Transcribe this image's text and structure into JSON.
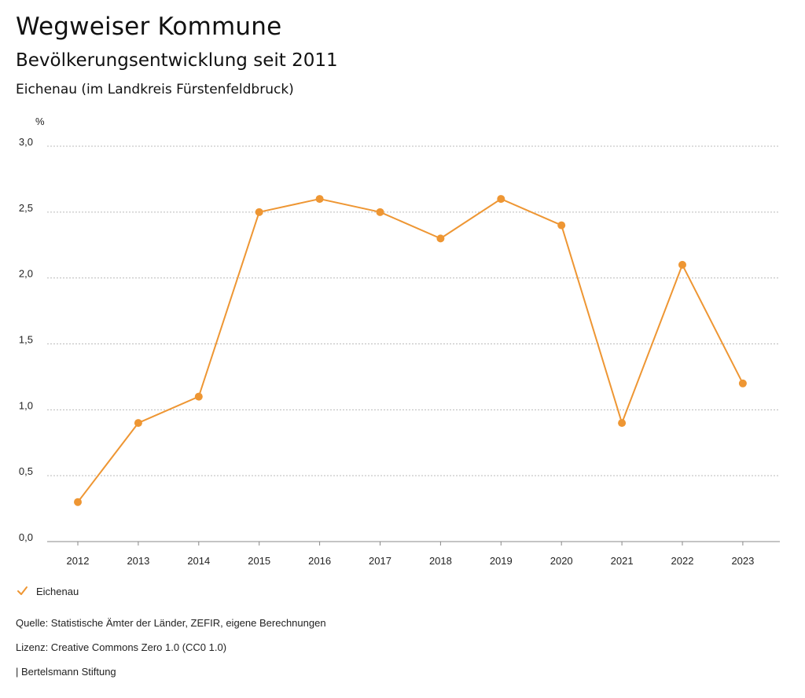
{
  "header": {
    "title": "Wegweiser Kommune",
    "subtitle": "Bevölkerungsentwicklung seit 2011",
    "region": "Eichenau (im Landkreis Fürstenfeldbruck)"
  },
  "chart_data": {
    "type": "line",
    "title": "Bevölkerungsentwicklung seit 2011",
    "ylabel": "%",
    "xlabel": "",
    "categories": [
      "2012",
      "2013",
      "2014",
      "2015",
      "2016",
      "2017",
      "2018",
      "2019",
      "2020",
      "2021",
      "2022",
      "2023"
    ],
    "series": [
      {
        "name": "Eichenau",
        "color": "#ee9633",
        "values": [
          0.3,
          0.9,
          1.1,
          2.5,
          2.6,
          2.5,
          2.3,
          2.6,
          2.4,
          0.9,
          2.1,
          1.2
        ]
      }
    ],
    "ylim": [
      0,
      3.0
    ],
    "yticks": [
      "0,0",
      "0,5",
      "1,0",
      "1,5",
      "2,0",
      "2,5",
      "3,0"
    ],
    "grid": true,
    "legend": "bottom-left"
  },
  "legend": {
    "label": "Eichenau",
    "icon": "check-icon"
  },
  "footer": {
    "source": "Quelle: Statistische Ämter der Länder, ZEFIR, eigene Berechnungen",
    "license": "Lizenz: Creative Commons Zero 1.0 (CC0 1.0)",
    "brand": "| Bertelsmann Stiftung"
  }
}
